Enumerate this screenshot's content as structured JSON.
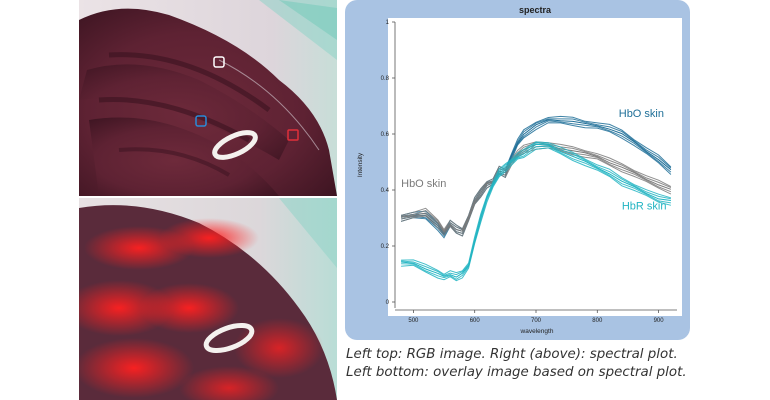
{
  "colors": {
    "panel_bg": "#a9c3e3",
    "hbo_dark": "#1f6f98",
    "gray": "#7a7a7a",
    "hbr_teal": "#21b4c2",
    "roi_white": "#ffffff",
    "roi_blue": "#2a8ad8",
    "roi_red": "#e0303a",
    "overlay_red": "#ff2020"
  },
  "images": {
    "top": {
      "name": "rgb-hand-image",
      "roi_markers": [
        "white",
        "blue",
        "red"
      ]
    },
    "bottom": {
      "name": "overlay-hand-image"
    }
  },
  "chart_data": {
    "type": "line",
    "title": "spectra",
    "xlabel": "wavelength",
    "ylabel": "Intensity",
    "xlim": [
      470,
      930
    ],
    "ylim": [
      0,
      1
    ],
    "xticks": [
      500,
      600,
      700,
      800,
      900
    ],
    "yticks": [
      0,
      0.2,
      0.4,
      0.6,
      0.8,
      1
    ],
    "ytick_labels": [
      "0",
      "0.2",
      "0.4",
      "0.6",
      "0.8",
      "1"
    ],
    "series": [
      {
        "name": "HbO skin",
        "color": "#1f6f98",
        "x": [
          480,
          500,
          520,
          540,
          550,
          560,
          570,
          580,
          590,
          600,
          610,
          620,
          630,
          640,
          650,
          660,
          670,
          680,
          700,
          720,
          740,
          760,
          780,
          800,
          820,
          840,
          860,
          880,
          900,
          920
        ],
        "y": [
          0.3,
          0.31,
          0.31,
          0.27,
          0.24,
          0.28,
          0.26,
          0.25,
          0.3,
          0.36,
          0.39,
          0.42,
          0.43,
          0.47,
          0.46,
          0.52,
          0.57,
          0.6,
          0.63,
          0.65,
          0.65,
          0.645,
          0.635,
          0.63,
          0.62,
          0.6,
          0.57,
          0.54,
          0.51,
          0.47
        ]
      },
      {
        "name": "HbO skin",
        "color": "#7a7a7a",
        "x": [
          480,
          500,
          520,
          540,
          550,
          560,
          570,
          580,
          590,
          600,
          610,
          620,
          630,
          640,
          650,
          660,
          670,
          680,
          700,
          720,
          740,
          760,
          780,
          800,
          820,
          840,
          860,
          880,
          900,
          920
        ],
        "y": [
          0.3,
          0.31,
          0.32,
          0.28,
          0.25,
          0.28,
          0.26,
          0.25,
          0.3,
          0.36,
          0.39,
          0.42,
          0.43,
          0.47,
          0.46,
          0.5,
          0.53,
          0.545,
          0.56,
          0.56,
          0.55,
          0.54,
          0.53,
          0.52,
          0.5,
          0.48,
          0.46,
          0.44,
          0.42,
          0.4
        ]
      },
      {
        "name": "HbR skin",
        "color": "#21b4c2",
        "x": [
          480,
          500,
          520,
          540,
          550,
          560,
          570,
          580,
          590,
          600,
          610,
          620,
          630,
          640,
          650,
          660,
          670,
          680,
          700,
          720,
          740,
          760,
          780,
          800,
          820,
          840,
          860,
          880,
          900,
          920
        ],
        "y": [
          0.14,
          0.14,
          0.12,
          0.1,
          0.09,
          0.1,
          0.09,
          0.1,
          0.13,
          0.22,
          0.3,
          0.37,
          0.42,
          0.46,
          0.48,
          0.5,
          0.52,
          0.53,
          0.56,
          0.56,
          0.54,
          0.52,
          0.5,
          0.48,
          0.46,
          0.43,
          0.41,
          0.39,
          0.37,
          0.36
        ]
      }
    ],
    "annotations": [
      {
        "text": "HbO skin",
        "series": 0,
        "x": 835,
        "y": 0.66
      },
      {
        "text": "HbO skin",
        "series": 1,
        "x": 480,
        "y": 0.41
      },
      {
        "text": "HbR skin",
        "series": 2,
        "x": 840,
        "y": 0.33
      }
    ],
    "grid": false,
    "legend": "none"
  },
  "caption": {
    "line1": "Left top: RGB image. Right (above): spectral plot.",
    "line2": "Left bottom: overlay image based on spectral plot."
  }
}
